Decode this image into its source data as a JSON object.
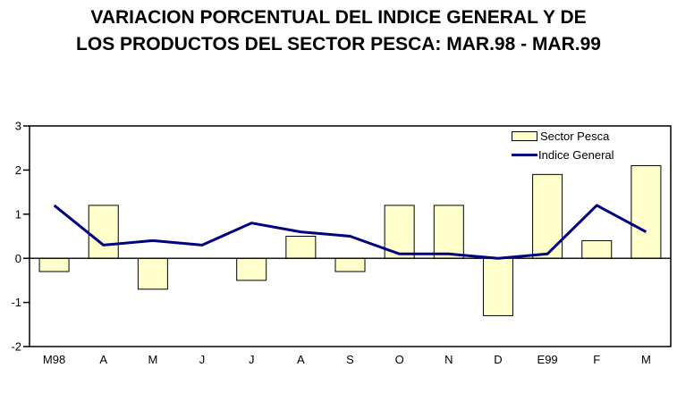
{
  "title": {
    "line1": "VARIACION PORCENTUAL DEL INDICE GENERAL Y DE",
    "line2": "LOS PRODUCTOS DEL SECTOR PESCA: MAR.98 - MAR.99"
  },
  "colors": {
    "background": "#FFFFFF",
    "bar_fill": "#FFFFCC",
    "bar_border": "#000000",
    "line": "#000080",
    "axis": "#000000",
    "text": "#000000"
  },
  "chart_data": {
    "type": "bar+line",
    "title": "VARIACION PORCENTUAL DEL INDICE GENERAL Y DE LOS PRODUCTOS DEL SECTOR PESCA: MAR.98 - MAR.99",
    "categories": [
      "M98",
      "A",
      "M",
      "J",
      "J",
      "A",
      "S",
      "O",
      "N",
      "D",
      "E99",
      "F",
      "M"
    ],
    "series": [
      {
        "name": "Sector Pesca",
        "type": "bar",
        "values": [
          -0.3,
          1.2,
          -0.7,
          0,
          -0.5,
          0.5,
          -0.3,
          1.2,
          1.2,
          -1.3,
          1.9,
          0.4,
          2.1
        ]
      },
      {
        "name": "Indice General",
        "type": "line",
        "values": [
          1.2,
          0.3,
          0.4,
          0.3,
          0.8,
          0.6,
          0.5,
          0.1,
          0.1,
          0,
          0.1,
          1.2,
          0.6
        ]
      }
    ],
    "xlabel": "",
    "ylabel": "",
    "ylim": [
      -2,
      3
    ],
    "y_ticks": [
      3,
      2,
      1,
      0,
      -1,
      -2
    ],
    "grid": false,
    "legend_position": "top-right"
  }
}
